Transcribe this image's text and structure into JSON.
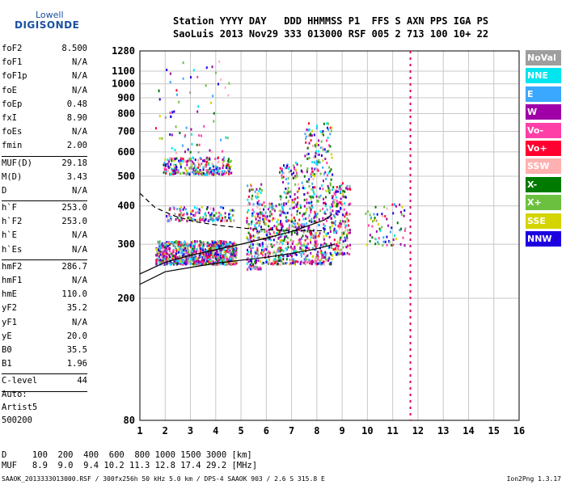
{
  "logo": {
    "brand": "Lowell",
    "name": "DIGISONDE"
  },
  "header": {
    "line1": "Station YYYY DAY   DDD HHMMSS P1  FFS S AXN PPS IGA PS",
    "line2": "SaoLuis 2013 Nov29 333 013000 RSF 005 2 713 100 10+ 22"
  },
  "params": {
    "group1": [
      {
        "k": "foF2",
        "v": "8.500"
      },
      {
        "k": "foF1",
        "v": "N/A"
      },
      {
        "k": "foF1p",
        "v": "N/A"
      },
      {
        "k": "foE",
        "v": "N/A"
      },
      {
        "k": "foEp",
        "v": "0.48"
      },
      {
        "k": "fxI",
        "v": "8.90"
      },
      {
        "k": "foEs",
        "v": "N/A"
      },
      {
        "k": "fmin",
        "v": "2.00"
      }
    ],
    "group2": [
      {
        "k": "MUF(D)",
        "v": "29.18"
      },
      {
        "k": "M(D)",
        "v": "3.43"
      },
      {
        "k": "D",
        "v": "N/A"
      }
    ],
    "group3": [
      {
        "k": "h`F",
        "v": "253.0"
      },
      {
        "k": "h`F2",
        "v": "253.0"
      },
      {
        "k": "h`E",
        "v": "N/A"
      },
      {
        "k": "h`Es",
        "v": "N/A"
      }
    ],
    "group4": [
      {
        "k": "hmF2",
        "v": "286.7"
      },
      {
        "k": "hmF1",
        "v": "N/A"
      },
      {
        "k": "hmE",
        "v": "110.0"
      },
      {
        "k": "yF2",
        "v": "35.2"
      },
      {
        "k": "yF1",
        "v": "N/A"
      },
      {
        "k": "yE",
        "v": "20.0"
      },
      {
        "k": "B0",
        "v": "35.5"
      },
      {
        "k": "B1",
        "v": "1.96"
      }
    ],
    "group5": [
      {
        "k": "C-level",
        "v": "44"
      }
    ]
  },
  "auto": {
    "l1": "Auto:",
    "l2": "Artist5",
    "l3": "500200"
  },
  "legend": [
    {
      "label": "NoVal",
      "color": "#9e9e9e"
    },
    {
      "label": "NNE",
      "color": "#00e5ee"
    },
    {
      "label": "E",
      "color": "#3aa8ff"
    },
    {
      "label": "W",
      "color": "#a000a8"
    },
    {
      "label": "Vo-",
      "color": "#ff3fa8"
    },
    {
      "label": "Vo+",
      "color": "#ff0030"
    },
    {
      "label": "SSW",
      "color": "#ffb0b0"
    },
    {
      "label": "X-",
      "color": "#007a00"
    },
    {
      "label": "X+",
      "color": "#6cc040"
    },
    {
      "label": "SSE",
      "color": "#d4d400"
    },
    {
      "label": "NNW",
      "color": "#1c00e0"
    }
  ],
  "footer": {
    "d_line": "D     100  200  400  600  800 1000 1500 3000 [km]",
    "muf_line": "MUF   8.9  9.0  9.4 10.2 11.3 12.8 17.4 29.2 [MHz]",
    "file_line": "SAAOK_2013333013000.RSF / 300fx256h 50 kHz 5.0 km / DPS-4 SAAOK 903 / 2.6 S 315.8 E",
    "version": "Ion2Png 1.3.17"
  },
  "chart_data": {
    "type": "scatter",
    "xlim": [
      1,
      16
    ],
    "ylim": [
      80,
      1280
    ],
    "yscale": "log",
    "x_ticks": [
      1,
      2,
      3,
      4,
      5,
      6,
      7,
      8,
      9,
      10,
      11,
      12,
      13,
      14,
      15,
      16
    ],
    "y_ticks": [
      80,
      200,
      300,
      400,
      500,
      600,
      700,
      800,
      900,
      1000,
      1100,
      1280
    ],
    "grid": true,
    "vertical_line": {
      "x": 11.7,
      "color": "#e0006a"
    },
    "trace_clusters": [
      {
        "x": [
          1.6,
          4.8
        ],
        "y": [
          260,
          310
        ],
        "n": 900
      },
      {
        "x": [
          1.9,
          4.6
        ],
        "y": [
          510,
          580
        ],
        "n": 260
      },
      {
        "x": [
          2.0,
          4.7
        ],
        "y": [
          360,
          400
        ],
        "n": 150
      },
      {
        "x": [
          5.2,
          5.8
        ],
        "y": [
          250,
          480
        ],
        "n": 180
      },
      {
        "x": [
          5.8,
          6.5
        ],
        "y": [
          260,
          420
        ],
        "n": 160
      },
      {
        "x": [
          6.5,
          7.5
        ],
        "y": [
          260,
          560
        ],
        "n": 300
      },
      {
        "x": [
          7.5,
          8.6
        ],
        "y": [
          260,
          760
        ],
        "n": 380
      },
      {
        "x": [
          8.6,
          9.3
        ],
        "y": [
          280,
          480
        ],
        "n": 160
      },
      {
        "x": [
          9.9,
          11.5
        ],
        "y": [
          300,
          410
        ],
        "n": 70
      },
      {
        "x": [
          1.6,
          4.5
        ],
        "y": [
          600,
          1200
        ],
        "n": 70
      }
    ],
    "curves": [
      {
        "style": "solid",
        "x": [
          1,
          2,
          3,
          4,
          5,
          6,
          7,
          8,
          8.7
        ],
        "y": [
          222,
          244,
          252,
          260,
          266,
          272,
          280,
          290,
          300
        ]
      },
      {
        "style": "solid",
        "x": [
          1,
          2,
          3,
          4,
          5,
          6,
          7,
          7.8,
          8.3,
          8.6
        ],
        "y": [
          240,
          262,
          276,
          288,
          300,
          314,
          330,
          348,
          360,
          375
        ]
      },
      {
        "style": "dashed",
        "x": [
          1,
          1.6,
          2.4,
          3.2,
          4.2,
          5.2,
          6.2,
          7.2,
          8.2
        ],
        "y": [
          440,
          395,
          370,
          355,
          345,
          338,
          334,
          332,
          332
        ]
      }
    ]
  }
}
